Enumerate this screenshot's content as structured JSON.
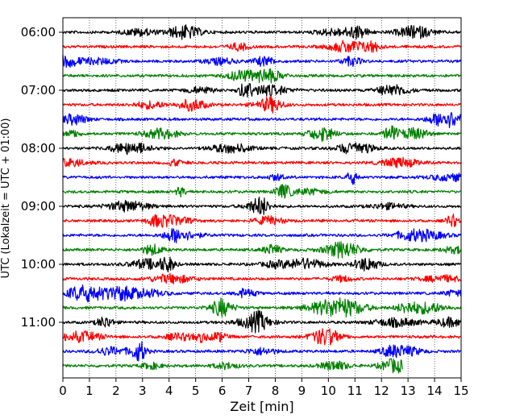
{
  "chart_data": {
    "type": "line",
    "title": "",
    "xlabel": "Zeit  [min]",
    "ylabel": "UTC (Lokalzeit = UTC + 01:00)",
    "xlim": [
      0,
      15
    ],
    "x_ticks": [
      0,
      1,
      2,
      3,
      4,
      5,
      6,
      7,
      8,
      9,
      10,
      11,
      12,
      13,
      14,
      15
    ],
    "y_tick_labels": [
      "06:00",
      "07:00",
      "08:00",
      "09:00",
      "10:00",
      "11:00"
    ],
    "y_tick_row_index": [
      0,
      4,
      8,
      12,
      16,
      20
    ],
    "row_interval_min": 15,
    "grid": "vertical dotted at each minute",
    "trace_colors": [
      "#000000",
      "#ff0000",
      "#0000ff",
      "#008000"
    ],
    "rows": [
      {
        "start": "06:00",
        "color": "#000000",
        "end_min": 15
      },
      {
        "start": "06:15",
        "color": "#ff0000",
        "end_min": 15
      },
      {
        "start": "06:30",
        "color": "#0000ff",
        "end_min": 15
      },
      {
        "start": "06:45",
        "color": "#008000",
        "end_min": 15
      },
      {
        "start": "07:00",
        "color": "#000000",
        "end_min": 15
      },
      {
        "start": "07:15",
        "color": "#ff0000",
        "end_min": 15
      },
      {
        "start": "07:30",
        "color": "#0000ff",
        "end_min": 15
      },
      {
        "start": "07:45",
        "color": "#008000",
        "end_min": 15
      },
      {
        "start": "08:00",
        "color": "#000000",
        "end_min": 15
      },
      {
        "start": "08:15",
        "color": "#ff0000",
        "end_min": 15
      },
      {
        "start": "08:30",
        "color": "#0000ff",
        "end_min": 15
      },
      {
        "start": "08:45",
        "color": "#008000",
        "end_min": 15
      },
      {
        "start": "09:00",
        "color": "#000000",
        "end_min": 15
      },
      {
        "start": "09:15",
        "color": "#ff0000",
        "end_min": 15
      },
      {
        "start": "09:30",
        "color": "#0000ff",
        "end_min": 15
      },
      {
        "start": "09:45",
        "color": "#008000",
        "end_min": 15
      },
      {
        "start": "10:00",
        "color": "#000000",
        "end_min": 15
      },
      {
        "start": "10:15",
        "color": "#ff0000",
        "end_min": 15
      },
      {
        "start": "10:30",
        "color": "#0000ff",
        "end_min": 15
      },
      {
        "start": "10:45",
        "color": "#008000",
        "end_min": 15
      },
      {
        "start": "11:00",
        "color": "#000000",
        "end_min": 15
      },
      {
        "start": "11:15",
        "color": "#ff0000",
        "end_min": 15
      },
      {
        "start": "11:30",
        "color": "#0000ff",
        "end_min": 15
      },
      {
        "start": "11:45",
        "color": "#008000",
        "end_min": 12.8
      }
    ]
  }
}
